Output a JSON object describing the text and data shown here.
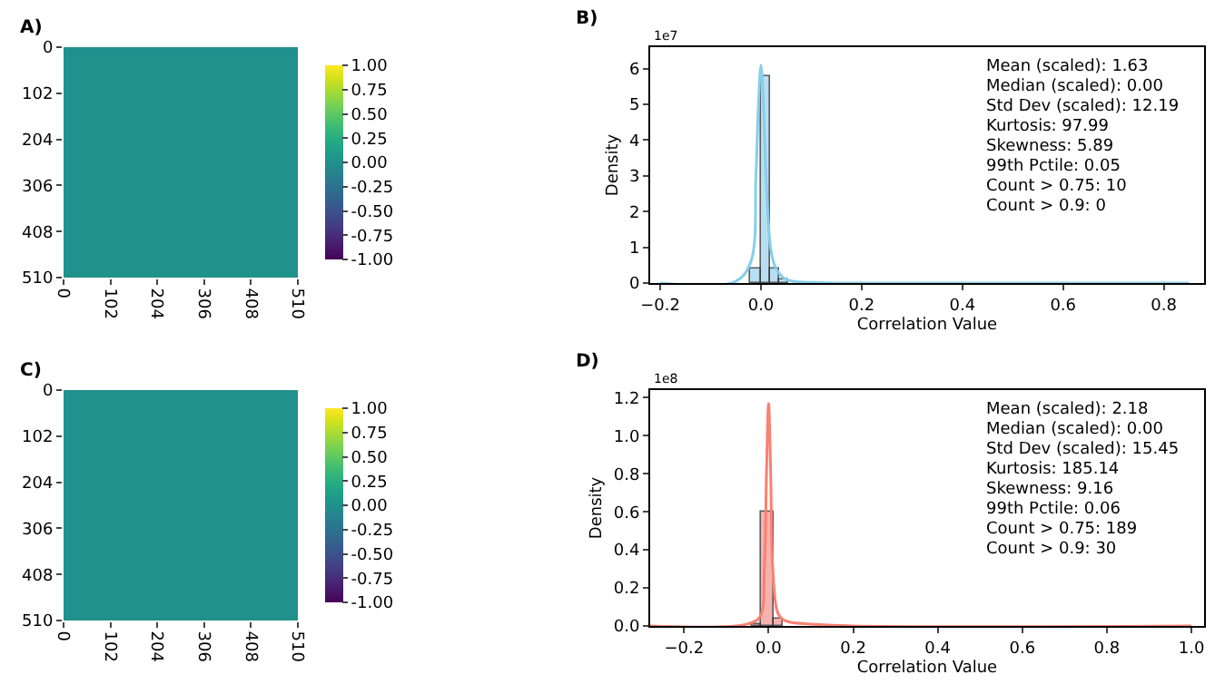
{
  "chart_data": [
    {
      "type": "heatmap",
      "title": "A)",
      "xlim": [
        0,
        510
      ],
      "xticks": [
        0,
        102,
        204,
        306,
        408,
        510
      ],
      "ylim": [
        510,
        0
      ],
      "yticks": [
        0,
        102,
        204,
        306,
        408,
        510
      ],
      "clim": [
        -1,
        1
      ],
      "cticks": [
        {
          "value": -1,
          "label": "-1.00"
        },
        {
          "value": -0.75,
          "label": "-0.75"
        },
        {
          "value": -0.5,
          "label": "-0.50"
        },
        {
          "value": -0.25,
          "label": "-0.25"
        },
        {
          "value": 0,
          "label": "0.00"
        },
        {
          "value": 0.25,
          "label": "0.25"
        },
        {
          "value": 0.5,
          "label": "0.50"
        },
        {
          "value": 0.75,
          "label": "0.75"
        },
        {
          "value": 1,
          "label": "1.00"
        }
      ],
      "cells": [
        [
          0,
          0,
          0,
          0,
          0,
          0,
          0,
          0,
          0,
          0
        ],
        [
          0,
          0,
          0,
          0,
          0,
          0,
          0,
          0,
          0,
          0
        ],
        [
          0,
          0,
          0,
          0,
          0,
          0,
          0,
          0,
          0,
          0
        ],
        [
          0,
          0,
          0,
          0,
          0,
          0,
          0,
          0,
          0,
          0
        ],
        [
          0,
          0,
          0,
          0,
          0,
          0,
          0,
          0,
          0,
          0
        ],
        [
          0,
          0,
          0,
          0,
          0,
          0,
          0,
          0,
          0,
          0
        ],
        [
          0,
          0,
          0,
          0,
          0,
          0,
          0,
          0,
          0,
          0
        ],
        [
          0,
          0,
          0,
          0,
          0,
          0,
          0,
          0,
          0,
          0
        ],
        [
          0,
          0,
          0,
          0,
          0,
          0,
          0,
          0,
          0,
          0
        ],
        [
          0,
          0,
          0,
          0,
          0,
          0,
          0,
          0,
          0,
          0
        ]
      ]
    },
    {
      "type": "histogram",
      "title": "B)",
      "xlabel": "Correlation Value",
      "ylabel": "Density",
      "xlim": [
        -0.22,
        0.88
      ],
      "xticks": [
        {
          "value": -0.2,
          "label": "−0.2"
        },
        {
          "value": 0,
          "label": "0.0"
        },
        {
          "value": 0.2,
          "label": "0.2"
        },
        {
          "value": 0.4,
          "label": "0.4"
        },
        {
          "value": 0.6,
          "label": "0.6"
        },
        {
          "value": 0.8,
          "label": "0.8"
        }
      ],
      "ylim": [
        0,
        6.6
      ],
      "yticks": [
        0,
        1,
        2,
        3,
        4,
        5,
        6
      ],
      "bins": [
        -0.021,
        0,
        0.017,
        0.037,
        0.055
      ],
      "values": [
        0.4,
        5.8,
        0.4,
        0.1
      ],
      "color": "#a6d8ee",
      "series": [
        {
          "type": "line",
          "color": "#87ceeb",
          "x": [
            -0.2,
            -0.05,
            -0.02,
            -0.01,
            -0.005,
            0,
            0.005,
            0.01,
            0.02,
            0.03,
            0.05,
            0.1,
            0.2,
            0.85
          ],
          "values": [
            0,
            0.05,
            0.6,
            3,
            5,
            6.1,
            5,
            3,
            0.9,
            0.4,
            0.1,
            0.02,
            0,
            0
          ]
        }
      ],
      "annotations": [
        "1e7",
        "Mean (scaled): 1.63",
        "Median (scaled): 0.00",
        "Std Dev (scaled): 12.19",
        "Kurtosis: 97.99",
        "Skewness: 5.89",
        "99th Pctile: 0.05",
        "Count > 0.75: 10",
        "Count > 0.9: 0"
      ]
    },
    {
      "type": "heatmap",
      "title": "C)",
      "xlim": [
        0,
        510
      ],
      "xticks": [
        0,
        102,
        204,
        306,
        408,
        510
      ],
      "ylim": [
        510,
        0
      ],
      "yticks": [
        0,
        102,
        204,
        306,
        408,
        510
      ],
      "clim": [
        -1,
        1
      ],
      "cticks": [
        {
          "value": -1,
          "label": "-1.00"
        },
        {
          "value": -0.75,
          "label": "-0.75"
        },
        {
          "value": -0.5,
          "label": "-0.50"
        },
        {
          "value": -0.25,
          "label": "-0.25"
        },
        {
          "value": 0,
          "label": "0.00"
        },
        {
          "value": 0.25,
          "label": "0.25"
        },
        {
          "value": 0.5,
          "label": "0.50"
        },
        {
          "value": 0.75,
          "label": "0.75"
        },
        {
          "value": 1,
          "label": "1.00"
        }
      ],
      "cells": [
        [
          0,
          0,
          0,
          0,
          0,
          0,
          0,
          0,
          0,
          0
        ],
        [
          0,
          0,
          0,
          0,
          0,
          0,
          0,
          0,
          0,
          0
        ],
        [
          0,
          0,
          0,
          0,
          0,
          0,
          0,
          0,
          0,
          0
        ],
        [
          0,
          0,
          0,
          0,
          0,
          0,
          0,
          0,
          0,
          0
        ],
        [
          0,
          0,
          0,
          0,
          0,
          0,
          0,
          0,
          0,
          0
        ],
        [
          0,
          0,
          0,
          0,
          0,
          0,
          0,
          0,
          0,
          0
        ],
        [
          0,
          0,
          0,
          0,
          0,
          0,
          0,
          0,
          0,
          0
        ],
        [
          0,
          0,
          0,
          0,
          0,
          0,
          0,
          0,
          0,
          0
        ],
        [
          0,
          0,
          0,
          0,
          0,
          0,
          0,
          0,
          0,
          0
        ],
        [
          0,
          0,
          0,
          0,
          0,
          0,
          0,
          0,
          0,
          0
        ]
      ]
    },
    {
      "type": "histogram",
      "title": "D)",
      "xlabel": "Correlation Value",
      "ylabel": "Density",
      "xlim": [
        -0.28,
        1.03
      ],
      "xticks": [
        {
          "value": -0.2,
          "label": "−0.2"
        },
        {
          "value": 0,
          "label": "0.0"
        },
        {
          "value": 0.2,
          "label": "0.2"
        },
        {
          "value": 0.4,
          "label": "0.4"
        },
        {
          "value": 0.6,
          "label": "0.6"
        },
        {
          "value": 0.8,
          "label": "0.8"
        },
        {
          "value": 1,
          "label": "1.0"
        }
      ],
      "ylim": [
        0,
        1.24
      ],
      "yticks": [
        {
          "value": 0,
          "label": "0.0"
        },
        {
          "value": 0.2,
          "label": "0.2"
        },
        {
          "value": 0.4,
          "label": "0.4"
        },
        {
          "value": 0.6,
          "label": "0.6"
        },
        {
          "value": 0.8,
          "label": "0.8"
        },
        {
          "value": 1,
          "label": "1.0"
        },
        {
          "value": 1.2,
          "label": "1.2"
        }
      ],
      "bins": [
        -0.04,
        -0.016,
        0.011,
        0.035
      ],
      "values": [
        0.01,
        0.6,
        0.04
      ],
      "color": "#f4a09a",
      "series": [
        {
          "type": "line",
          "color": "#fa8072",
          "x": [
            -0.28,
            -0.05,
            -0.02,
            -0.01,
            -0.005,
            0,
            0.005,
            0.01,
            0.02,
            0.03,
            0.05,
            0.1,
            0.2,
            1.0
          ],
          "values": [
            0,
            0.01,
            0.05,
            0.3,
            0.8,
            1.17,
            0.8,
            0.3,
            0.08,
            0.04,
            0.02,
            0.01,
            0,
            0
          ]
        }
      ],
      "annotations": [
        "1e8",
        "Mean (scaled): 2.18",
        "Median (scaled): 0.00",
        "Std Dev (scaled): 15.45",
        "Kurtosis: 185.14",
        "Skewness: 9.16",
        "99th Pctile: 0.06",
        "Count > 0.75: 189",
        "Count > 0.9: 30"
      ]
    }
  ]
}
